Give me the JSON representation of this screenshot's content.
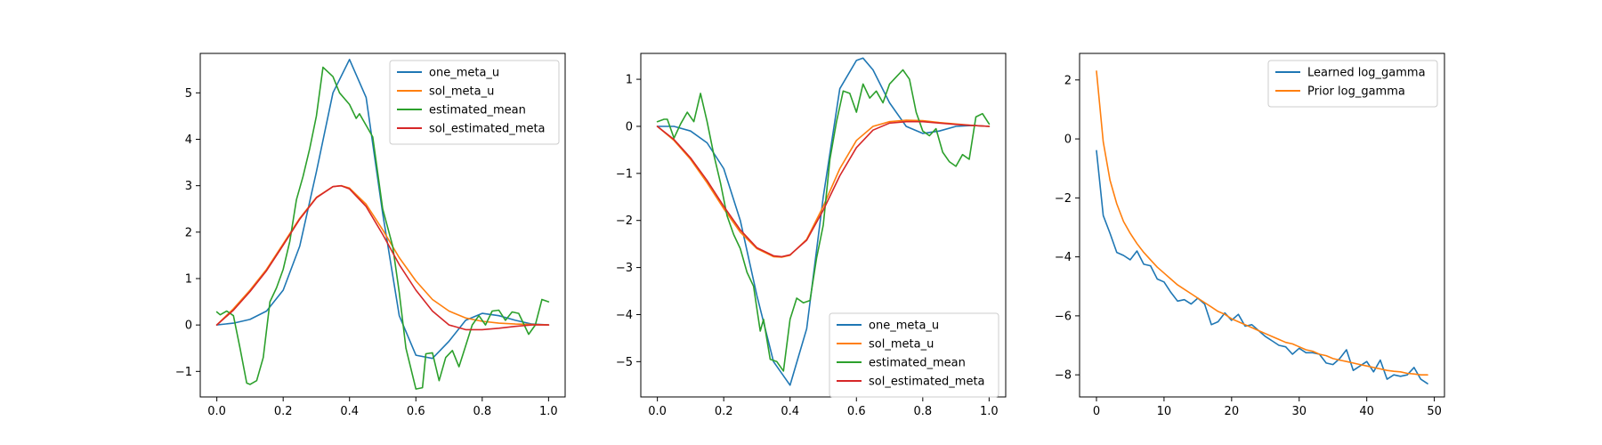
{
  "chart_data": [
    {
      "type": "line",
      "title": "",
      "xlabel": "",
      "ylabel": "",
      "xlim": [
        -0.05,
        1.05
      ],
      "ylim": [
        -1.55,
        5.85
      ],
      "xticks": [
        0.0,
        0.2,
        0.4,
        0.6,
        0.8,
        1.0
      ],
      "xtick_labels": [
        "0.0",
        "0.2",
        "0.4",
        "0.6",
        "0.8",
        "1.0"
      ],
      "yticks": [
        -1,
        0,
        1,
        2,
        3,
        4,
        5
      ],
      "ytick_labels": [
        "−1",
        "0",
        "1",
        "2",
        "3",
        "4",
        "5"
      ],
      "grid": false,
      "legend_position": "upper-right",
      "series": [
        {
          "name": "one_meta_u",
          "color": "#1f77b4",
          "x": [
            0.0,
            0.05,
            0.1,
            0.15,
            0.2,
            0.25,
            0.3,
            0.35,
            0.4,
            0.45,
            0.5,
            0.55,
            0.6,
            0.65,
            0.7,
            0.75,
            0.8,
            0.85,
            0.9,
            0.95,
            1.0
          ],
          "y": [
            0.0,
            0.04,
            0.12,
            0.3,
            0.75,
            1.7,
            3.3,
            5.0,
            5.72,
            4.9,
            2.4,
            0.2,
            -0.65,
            -0.72,
            -0.35,
            0.1,
            0.25,
            0.2,
            0.1,
            0.02,
            0.0
          ]
        },
        {
          "name": "sol_meta_u",
          "color": "#ff7f0e",
          "x": [
            0.0,
            0.05,
            0.1,
            0.15,
            0.2,
            0.25,
            0.3,
            0.35,
            0.375,
            0.4,
            0.45,
            0.5,
            0.55,
            0.6,
            0.65,
            0.7,
            0.75,
            0.8,
            0.85,
            0.9,
            0.95,
            1.0
          ],
          "y": [
            0.0,
            0.35,
            0.75,
            1.2,
            1.75,
            2.3,
            2.75,
            2.98,
            3.0,
            2.95,
            2.6,
            2.05,
            1.45,
            0.95,
            0.55,
            0.3,
            0.15,
            0.08,
            0.04,
            0.02,
            0.01,
            0.0
          ]
        },
        {
          "name": "estimated_mean",
          "color": "#2ca02c",
          "x": [
            0.0,
            0.01,
            0.03,
            0.05,
            0.07,
            0.09,
            0.1,
            0.12,
            0.14,
            0.16,
            0.18,
            0.2,
            0.22,
            0.24,
            0.26,
            0.28,
            0.3,
            0.32,
            0.35,
            0.37,
            0.4,
            0.42,
            0.43,
            0.45,
            0.47,
            0.5,
            0.53,
            0.55,
            0.57,
            0.6,
            0.62,
            0.63,
            0.65,
            0.67,
            0.69,
            0.71,
            0.73,
            0.75,
            0.77,
            0.79,
            0.81,
            0.83,
            0.85,
            0.87,
            0.89,
            0.91,
            0.92,
            0.94,
            0.96,
            0.98,
            1.0
          ],
          "y": [
            0.28,
            0.22,
            0.3,
            0.2,
            -0.5,
            -1.25,
            -1.28,
            -1.2,
            -0.7,
            0.5,
            0.8,
            1.2,
            1.8,
            2.7,
            3.2,
            3.8,
            4.5,
            5.55,
            5.35,
            5.0,
            4.75,
            4.45,
            4.55,
            4.3,
            4.05,
            2.5,
            1.7,
            0.7,
            -0.5,
            -1.38,
            -1.35,
            -0.62,
            -0.6,
            -1.2,
            -0.7,
            -0.55,
            -0.9,
            -0.45,
            0.0,
            0.2,
            0.0,
            0.3,
            0.32,
            0.1,
            0.28,
            0.25,
            0.1,
            -0.2,
            0.0,
            0.55,
            0.5
          ]
        },
        {
          "name": "sol_estimated_meta",
          "color": "#d62728",
          "x": [
            0.0,
            0.05,
            0.1,
            0.15,
            0.2,
            0.25,
            0.3,
            0.35,
            0.375,
            0.4,
            0.45,
            0.5,
            0.55,
            0.6,
            0.65,
            0.7,
            0.75,
            0.8,
            0.85,
            0.9,
            0.95,
            1.0
          ],
          "y": [
            0.0,
            0.32,
            0.72,
            1.17,
            1.72,
            2.28,
            2.74,
            2.98,
            3.0,
            2.93,
            2.55,
            1.95,
            1.3,
            0.75,
            0.3,
            0.0,
            -0.1,
            -0.1,
            -0.07,
            -0.03,
            0.0,
            0.0
          ]
        }
      ]
    },
    {
      "type": "line",
      "title": "",
      "xlabel": "",
      "ylabel": "",
      "xlim": [
        -0.05,
        1.05
      ],
      "ylim": [
        -5.75,
        1.55
      ],
      "xticks": [
        0.0,
        0.2,
        0.4,
        0.6,
        0.8,
        1.0
      ],
      "xtick_labels": [
        "0.0",
        "0.2",
        "0.4",
        "0.6",
        "0.8",
        "1.0"
      ],
      "yticks": [
        -5,
        -4,
        -3,
        -2,
        -1,
        0,
        1
      ],
      "ytick_labels": [
        "−5",
        "−4",
        "−3",
        "−2",
        "−1",
        "0",
        "1"
      ],
      "grid": false,
      "legend_position": "lower-right",
      "series": [
        {
          "name": "one_meta_u",
          "color": "#1f77b4",
          "x": [
            0.0,
            0.05,
            0.1,
            0.15,
            0.2,
            0.25,
            0.3,
            0.35,
            0.4,
            0.45,
            0.5,
            0.55,
            0.6,
            0.62,
            0.65,
            0.7,
            0.75,
            0.8,
            0.85,
            0.9,
            0.95,
            1.0
          ],
          "y": [
            0.0,
            0.0,
            -0.1,
            -0.35,
            -0.9,
            -2.0,
            -3.6,
            -5.0,
            -5.5,
            -4.3,
            -1.5,
            0.8,
            1.4,
            1.45,
            1.2,
            0.5,
            0.0,
            -0.15,
            -0.1,
            0.0,
            0.02,
            0.0
          ]
        },
        {
          "name": "sol_meta_u",
          "color": "#ff7f0e",
          "x": [
            0.0,
            0.05,
            0.1,
            0.15,
            0.2,
            0.25,
            0.3,
            0.35,
            0.375,
            0.4,
            0.45,
            0.5,
            0.55,
            0.6,
            0.65,
            0.7,
            0.75,
            0.8,
            0.85,
            0.9,
            0.95,
            1.0
          ],
          "y": [
            0.0,
            -0.3,
            -0.7,
            -1.2,
            -1.75,
            -2.25,
            -2.6,
            -2.77,
            -2.78,
            -2.74,
            -2.4,
            -1.7,
            -0.9,
            -0.3,
            0.0,
            0.1,
            0.13,
            0.12,
            0.08,
            0.05,
            0.02,
            0.0
          ]
        },
        {
          "name": "estimated_mean",
          "color": "#2ca02c",
          "x": [
            0.0,
            0.02,
            0.03,
            0.05,
            0.07,
            0.09,
            0.11,
            0.13,
            0.15,
            0.17,
            0.19,
            0.21,
            0.23,
            0.25,
            0.27,
            0.29,
            0.31,
            0.32,
            0.34,
            0.36,
            0.38,
            0.4,
            0.42,
            0.44,
            0.46,
            0.48,
            0.5,
            0.52,
            0.54,
            0.56,
            0.58,
            0.6,
            0.62,
            0.64,
            0.66,
            0.68,
            0.7,
            0.72,
            0.74,
            0.76,
            0.78,
            0.8,
            0.82,
            0.84,
            0.86,
            0.88,
            0.9,
            0.92,
            0.94,
            0.96,
            0.98,
            1.0
          ],
          "y": [
            0.1,
            0.15,
            0.15,
            -0.25,
            0.05,
            0.3,
            0.1,
            0.7,
            0.1,
            -0.6,
            -1.2,
            -1.9,
            -2.3,
            -2.6,
            -3.1,
            -3.4,
            -4.35,
            -4.1,
            -4.95,
            -5.0,
            -5.2,
            -4.1,
            -3.65,
            -3.75,
            -3.7,
            -2.8,
            -2.1,
            -0.7,
            0.1,
            0.75,
            0.7,
            0.3,
            0.9,
            0.6,
            0.75,
            0.5,
            0.9,
            1.05,
            1.2,
            1.0,
            0.3,
            -0.1,
            -0.2,
            -0.05,
            -0.55,
            -0.75,
            -0.85,
            -0.6,
            -0.7,
            0.2,
            0.27,
            0.05
          ]
        },
        {
          "name": "sol_estimated_meta",
          "color": "#d62728",
          "x": [
            0.0,
            0.05,
            0.1,
            0.15,
            0.2,
            0.25,
            0.3,
            0.35,
            0.375,
            0.4,
            0.45,
            0.5,
            0.55,
            0.6,
            0.65,
            0.7,
            0.75,
            0.8,
            0.85,
            0.9,
            0.95,
            1.0
          ],
          "y": [
            0.0,
            -0.28,
            -0.67,
            -1.15,
            -1.7,
            -2.2,
            -2.58,
            -2.75,
            -2.77,
            -2.73,
            -2.42,
            -1.78,
            -1.05,
            -0.45,
            -0.08,
            0.07,
            0.1,
            0.1,
            0.07,
            0.04,
            0.02,
            0.0
          ]
        }
      ]
    },
    {
      "type": "line",
      "title": "",
      "xlabel": "",
      "ylabel": "",
      "xlim": [
        -2.5,
        51.5
      ],
      "ylim": [
        -8.75,
        2.9
      ],
      "xticks": [
        0,
        10,
        20,
        30,
        40,
        50
      ],
      "xtick_labels": [
        "0",
        "10",
        "20",
        "30",
        "40",
        "50"
      ],
      "yticks": [
        -8,
        -6,
        -4,
        -2,
        0,
        2
      ],
      "ytick_labels": [
        "−8",
        "−6",
        "−4",
        "−2",
        "0",
        "2"
      ],
      "grid": false,
      "legend_position": "upper-right",
      "series": [
        {
          "name": "Learned log_gamma",
          "color": "#1f77b4",
          "x": [
            0,
            1,
            2,
            3,
            4,
            5,
            6,
            7,
            8,
            9,
            10,
            11,
            12,
            13,
            14,
            15,
            16,
            17,
            18,
            19,
            20,
            21,
            22,
            23,
            24,
            25,
            26,
            27,
            28,
            29,
            30,
            31,
            32,
            33,
            34,
            35,
            36,
            37,
            38,
            39,
            40,
            41,
            42,
            43,
            44,
            45,
            46,
            47,
            48,
            49
          ],
          "y": [
            -0.4,
            -2.6,
            -3.2,
            -3.85,
            -3.95,
            -4.1,
            -3.8,
            -4.25,
            -4.3,
            -4.75,
            -4.85,
            -5.2,
            -5.5,
            -5.45,
            -5.6,
            -5.4,
            -5.6,
            -6.3,
            -6.2,
            -5.9,
            -6.15,
            -5.95,
            -6.35,
            -6.3,
            -6.5,
            -6.7,
            -6.85,
            -7.0,
            -7.05,
            -7.3,
            -7.1,
            -7.25,
            -7.25,
            -7.3,
            -7.6,
            -7.65,
            -7.45,
            -7.15,
            -7.85,
            -7.7,
            -7.55,
            -7.9,
            -7.5,
            -8.15,
            -8.0,
            -8.05,
            -8.0,
            -7.75,
            -8.15,
            -8.3
          ]
        },
        {
          "name": "Prior log_gamma",
          "color": "#ff7f0e",
          "x": [
            0,
            1,
            2,
            3,
            4,
            5,
            6,
            7,
            8,
            9,
            10,
            11,
            12,
            13,
            14,
            15,
            16,
            17,
            18,
            19,
            20,
            21,
            22,
            23,
            24,
            25,
            26,
            27,
            28,
            29,
            30,
            31,
            32,
            33,
            34,
            35,
            36,
            37,
            38,
            39,
            40,
            41,
            42,
            43,
            44,
            45,
            46,
            47,
            48,
            49
          ],
          "y": [
            2.3,
            -0.1,
            -1.4,
            -2.2,
            -2.8,
            -3.2,
            -3.55,
            -3.85,
            -4.1,
            -4.35,
            -4.55,
            -4.75,
            -4.95,
            -5.1,
            -5.25,
            -5.4,
            -5.55,
            -5.7,
            -5.85,
            -5.95,
            -6.1,
            -6.2,
            -6.3,
            -6.4,
            -6.5,
            -6.6,
            -6.7,
            -6.8,
            -6.9,
            -6.95,
            -7.05,
            -7.15,
            -7.2,
            -7.3,
            -7.35,
            -7.45,
            -7.5,
            -7.55,
            -7.6,
            -7.65,
            -7.7,
            -7.75,
            -7.8,
            -7.85,
            -7.88,
            -7.9,
            -7.95,
            -7.97,
            -8.0,
            -8.0
          ]
        }
      ]
    }
  ]
}
